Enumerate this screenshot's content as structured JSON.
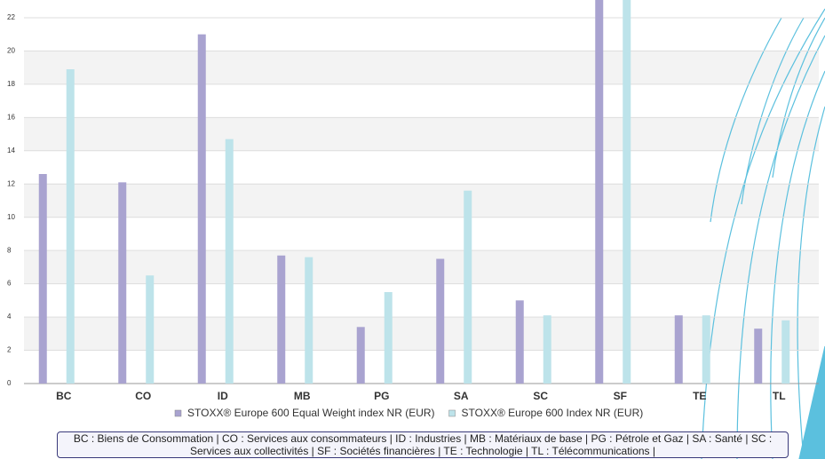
{
  "chart_data": {
    "type": "bar",
    "categories": [
      "BC",
      "CO",
      "ID",
      "MB",
      "PG",
      "SA",
      "SC",
      "SF",
      "TE",
      "TL"
    ],
    "series": [
      {
        "name": "STOXX® Europe 600 Equal Weight index NR (EUR)",
        "color": "#a9a3d0",
        "values": [
          12.6,
          12.1,
          21.0,
          7.7,
          3.4,
          7.5,
          5.0,
          23.5,
          4.1,
          3.3
        ]
      },
      {
        "name": "STOXX® Europe 600 Index NR (EUR)",
        "color": "#bde3ea",
        "values": [
          18.9,
          6.5,
          14.7,
          7.6,
          5.5,
          11.6,
          4.1,
          24.0,
          4.1,
          3.8
        ]
      }
    ],
    "ylim": [
      0,
      23
    ],
    "yticks": [
      0,
      2,
      4,
      6,
      8,
      10,
      12,
      14,
      16,
      18,
      20,
      22
    ],
    "grid": true,
    "footnote": "BC : Biens de Consommation | CO : Services aux consommateurs | ID : Industries | MB : Matériaux de base | PG : Pétrole et Gaz | SA : Santé | SC : Services aux collectivités | SF : Sociétés financières | TE : Technologie | TL : Télécommunications |"
  }
}
